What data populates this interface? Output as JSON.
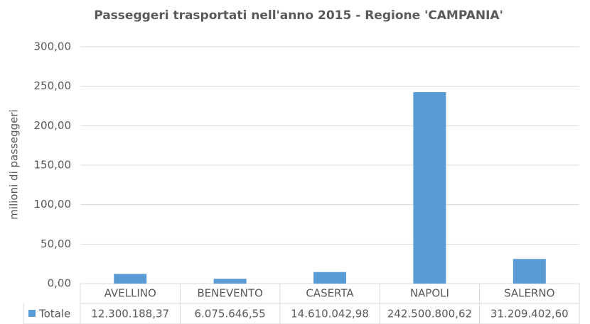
{
  "chart_data": {
    "type": "bar",
    "title": "Passeggeri trasportati nell'anno 2015 - Regione 'CAMPANIA'",
    "y_label": "milioni di passeggeri",
    "categories": [
      "AVELLINO",
      "BENEVENTO",
      "CASERTA",
      "NAPOLI",
      "SALERNO"
    ],
    "series": [
      {
        "name": "Totale",
        "color": "#5b9bd5",
        "values": [
          12.30018837,
          6.07564655,
          14.61004298,
          242.50080062,
          31.2094026
        ],
        "value_labels": [
          "12.300.188,37",
          "6.075.646,55",
          "14.610.042,98",
          "242.500.800,62",
          "31.209.402,60"
        ]
      }
    ],
    "ylim": [
      0,
      300
    ],
    "yticks": [
      {
        "value": 0,
        "label": "0,00"
      },
      {
        "value": 50,
        "label": "50,00"
      },
      {
        "value": 100,
        "label": "100,00"
      },
      {
        "value": 150,
        "label": "150,00"
      },
      {
        "value": 200,
        "label": "200,00"
      },
      {
        "value": 250,
        "label": "250,00"
      },
      {
        "value": 300,
        "label": "300,00"
      }
    ],
    "grid": true,
    "data_table": true
  }
}
